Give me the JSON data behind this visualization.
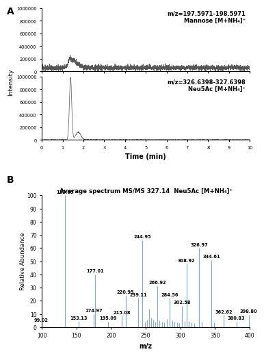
{
  "mannose_annotation": "m/z=197.5971-198.5971\nMannose [M+NH₄]⁺",
  "neu5ac_annotation": "m/z=326.6398-327.6398\nNeu5Ac [M+NH₄]⁺",
  "ms_title": "Average spectrum MS/MS 327.14  Neu5Ac [M+NH₄]⁺",
  "time_xlabel": "Time (min)",
  "intensity_ylabel": "Intensity",
  "rel_abundance_ylabel": "Relative Abundance",
  "mz_xlabel": "m/z",
  "mannose_ylim": [
    0,
    1000000
  ],
  "neu5ac_ylim": [
    0,
    1000000
  ],
  "time_xlim": [
    0,
    10
  ],
  "ms_xlim": [
    100,
    400
  ],
  "ms_ylim": [
    0,
    100
  ],
  "ms_peaks": [
    {
      "mz": 99.02,
      "intensity": 2.5,
      "label": "99.02"
    },
    {
      "mz": 133.05,
      "intensity": 100.0,
      "label": "133.05"
    },
    {
      "mz": 153.13,
      "intensity": 4.5,
      "label": "153.13"
    },
    {
      "mz": 174.97,
      "intensity": 10.0,
      "label": "174.97"
    },
    {
      "mz": 177.01,
      "intensity": 40.0,
      "label": "177.01"
    },
    {
      "mz": 195.09,
      "intensity": 4.0,
      "label": "195.09"
    },
    {
      "mz": 215.08,
      "intensity": 8.5,
      "label": "215.08"
    },
    {
      "mz": 220.95,
      "intensity": 24.0,
      "label": "220.95"
    },
    {
      "mz": 239.11,
      "intensity": 22.0,
      "label": "239.11"
    },
    {
      "mz": 244.95,
      "intensity": 66.0,
      "label": "244.95"
    },
    {
      "mz": 248.5,
      "intensity": 4.0,
      "label": ""
    },
    {
      "mz": 251.5,
      "intensity": 5.5,
      "label": ""
    },
    {
      "mz": 254.5,
      "intensity": 14.0,
      "label": ""
    },
    {
      "mz": 257.5,
      "intensity": 7.0,
      "label": ""
    },
    {
      "mz": 261.0,
      "intensity": 5.5,
      "label": ""
    },
    {
      "mz": 263.5,
      "intensity": 4.0,
      "label": ""
    },
    {
      "mz": 266.92,
      "intensity": 31.0,
      "label": "266.92"
    },
    {
      "mz": 270.0,
      "intensity": 5.0,
      "label": ""
    },
    {
      "mz": 273.5,
      "intensity": 4.0,
      "label": ""
    },
    {
      "mz": 277.0,
      "intensity": 3.5,
      "label": ""
    },
    {
      "mz": 280.5,
      "intensity": 6.0,
      "label": ""
    },
    {
      "mz": 284.56,
      "intensity": 22.0,
      "label": "284.56"
    },
    {
      "mz": 288.0,
      "intensity": 5.0,
      "label": ""
    },
    {
      "mz": 291.5,
      "intensity": 4.0,
      "label": ""
    },
    {
      "mz": 295.0,
      "intensity": 3.5,
      "label": ""
    },
    {
      "mz": 298.5,
      "intensity": 3.0,
      "label": ""
    },
    {
      "mz": 302.58,
      "intensity": 16.0,
      "label": "302.58"
    },
    {
      "mz": 306.0,
      "intensity": 4.5,
      "label": ""
    },
    {
      "mz": 308.92,
      "intensity": 48.0,
      "label": "308.92"
    },
    {
      "mz": 312.5,
      "intensity": 4.5,
      "label": ""
    },
    {
      "mz": 316.0,
      "intensity": 3.5,
      "label": ""
    },
    {
      "mz": 320.0,
      "intensity": 3.0,
      "label": ""
    },
    {
      "mz": 326.97,
      "intensity": 60.0,
      "label": "326.97"
    },
    {
      "mz": 330.5,
      "intensity": 4.0,
      "label": ""
    },
    {
      "mz": 344.61,
      "intensity": 51.0,
      "label": "344.61"
    },
    {
      "mz": 348.5,
      "intensity": 3.5,
      "label": ""
    },
    {
      "mz": 362.62,
      "intensity": 9.0,
      "label": "362.62"
    },
    {
      "mz": 380.83,
      "intensity": 4.0,
      "label": "380.83"
    },
    {
      "mz": 398.8,
      "intensity": 9.5,
      "label": "398.80"
    }
  ],
  "line_color": "#555555",
  "ms_bar_color": "#8aacbf",
  "background_color": "#ffffff",
  "mannose_yticks": [
    0,
    200000,
    400000,
    600000,
    800000,
    1000000
  ],
  "neu5ac_yticks": [
    0,
    200000,
    400000,
    600000,
    800000,
    1000000
  ],
  "time_xticks": [
    0,
    1,
    2,
    3,
    4,
    5,
    6,
    7,
    8,
    9,
    10
  ],
  "ms_xticks": [
    100,
    150,
    200,
    250,
    300,
    350,
    400
  ],
  "ms_yticks": [
    0,
    10,
    20,
    30,
    40,
    50,
    60,
    70,
    80,
    90,
    100
  ]
}
